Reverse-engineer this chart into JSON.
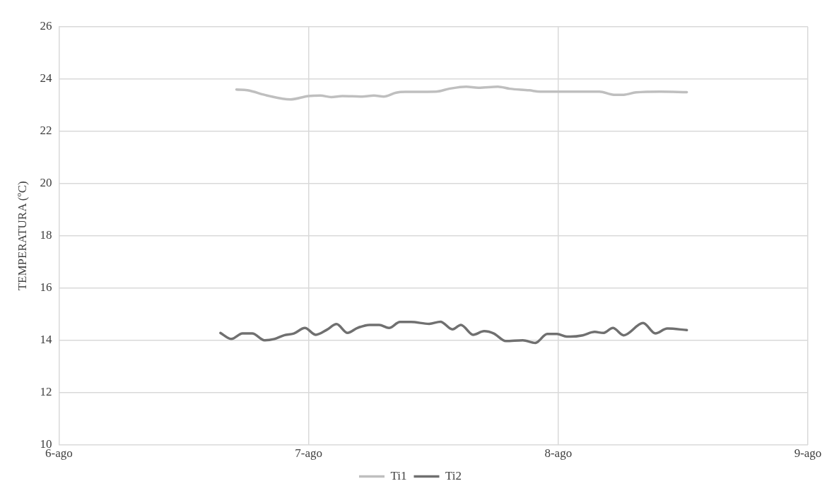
{
  "chart_data": {
    "type": "line",
    "ylabel": "TEMPERATURA (ºC)",
    "xlim": [
      6,
      9
    ],
    "xticks": [
      {
        "value": 6,
        "label": "6-ago"
      },
      {
        "value": 7,
        "label": "7-ago"
      },
      {
        "value": 8,
        "label": "8-ago"
      },
      {
        "value": 9,
        "label": "9-ago"
      }
    ],
    "ylim": [
      10,
      26
    ],
    "yticks": [
      10,
      12,
      14,
      16,
      18,
      20,
      22,
      24,
      26
    ],
    "grid": true,
    "legend": "bottom",
    "marker": "none",
    "line_style": "solid",
    "series": [
      {
        "name": "Ti1",
        "color": "#bfbfbf",
        "x": [
          6.711,
          6.755,
          6.834,
          6.926,
          6.999,
          7.047,
          7.091,
          7.135,
          7.214,
          7.262,
          7.301,
          7.35,
          7.388,
          7.51,
          7.563,
          7.631,
          7.68,
          7.758,
          7.806,
          7.884,
          7.927,
          8.029,
          8.165,
          8.223,
          8.262,
          8.311,
          8.408,
          8.515
        ],
        "values": [
          23.6,
          23.57,
          23.37,
          23.22,
          23.35,
          23.37,
          23.31,
          23.35,
          23.33,
          23.37,
          23.33,
          23.48,
          23.51,
          23.52,
          23.63,
          23.71,
          23.67,
          23.71,
          23.63,
          23.57,
          23.52,
          23.52,
          23.52,
          23.4,
          23.4,
          23.49,
          23.52,
          23.5
        ]
      },
      {
        "name": "Ti2",
        "color": "#707070",
        "x": [
          6.647,
          6.691,
          6.735,
          6.774,
          6.824,
          6.863,
          6.902,
          6.941,
          6.985,
          7.029,
          7.073,
          7.112,
          7.156,
          7.195,
          7.244,
          7.283,
          7.322,
          7.366,
          7.41,
          7.483,
          7.528,
          7.576,
          7.61,
          7.659,
          7.703,
          7.742,
          7.79,
          7.858,
          7.908,
          7.956,
          7.995,
          8.034,
          8.049,
          8.098,
          8.146,
          8.18,
          8.219,
          8.262,
          8.34,
          8.389,
          8.437,
          8.515
        ],
        "values": [
          14.28,
          14.05,
          14.26,
          14.26,
          14,
          14.05,
          14.19,
          14.26,
          14.47,
          14.21,
          14.4,
          14.62,
          14.28,
          14.47,
          14.59,
          14.59,
          14.47,
          14.7,
          14.7,
          14.63,
          14.71,
          14.42,
          14.59,
          14.21,
          14.35,
          14.26,
          13.97,
          14,
          13.9,
          14.24,
          14.24,
          14.14,
          14.14,
          14.19,
          14.32,
          14.28,
          14.47,
          14.19,
          14.66,
          14.26,
          14.45,
          14.39
        ]
      }
    ]
  }
}
